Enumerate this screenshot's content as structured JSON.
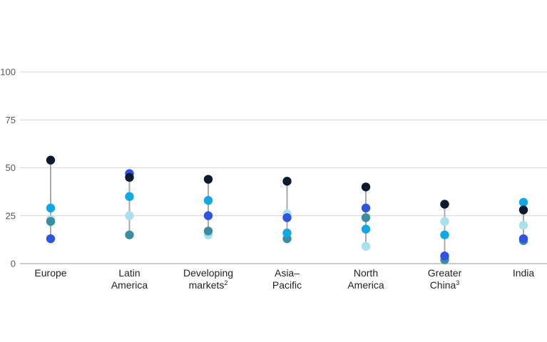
{
  "chart_data": {
    "type": "scatter",
    "categories": [
      {
        "lines": [
          "Europe"
        ],
        "sup": ""
      },
      {
        "lines": [
          "Latin",
          "America"
        ],
        "sup": ""
      },
      {
        "lines": [
          "Developing",
          "markets"
        ],
        "sup": "2"
      },
      {
        "lines": [
          "Asia–",
          "Pacific"
        ],
        "sup": ""
      },
      {
        "lines": [
          "North",
          "America"
        ],
        "sup": ""
      },
      {
        "lines": [
          "Greater",
          "China"
        ],
        "sup": "3"
      },
      {
        "lines": [
          "India"
        ],
        "sup": ""
      }
    ],
    "ylim": [
      0,
      100
    ],
    "yticks": [
      0,
      25,
      50,
      75,
      100
    ],
    "grid": true,
    "series": [
      {
        "color": "#0b1a2e",
        "values": [
          54,
          45,
          44,
          43,
          40,
          31,
          28
        ]
      },
      {
        "color": "#2f55e0",
        "values": [
          13,
          47,
          25,
          24,
          29,
          4,
          13
        ]
      },
      {
        "color": "#12a7e6",
        "values": [
          29,
          35,
          33,
          16,
          18,
          15,
          32
        ]
      },
      {
        "color": "#3b8ea0",
        "values": [
          22,
          15,
          17,
          13,
          24,
          2,
          12
        ]
      },
      {
        "color": "#a8e0ee",
        "values": [
          23,
          25,
          15,
          26,
          9,
          22,
          20
        ]
      }
    ]
  }
}
